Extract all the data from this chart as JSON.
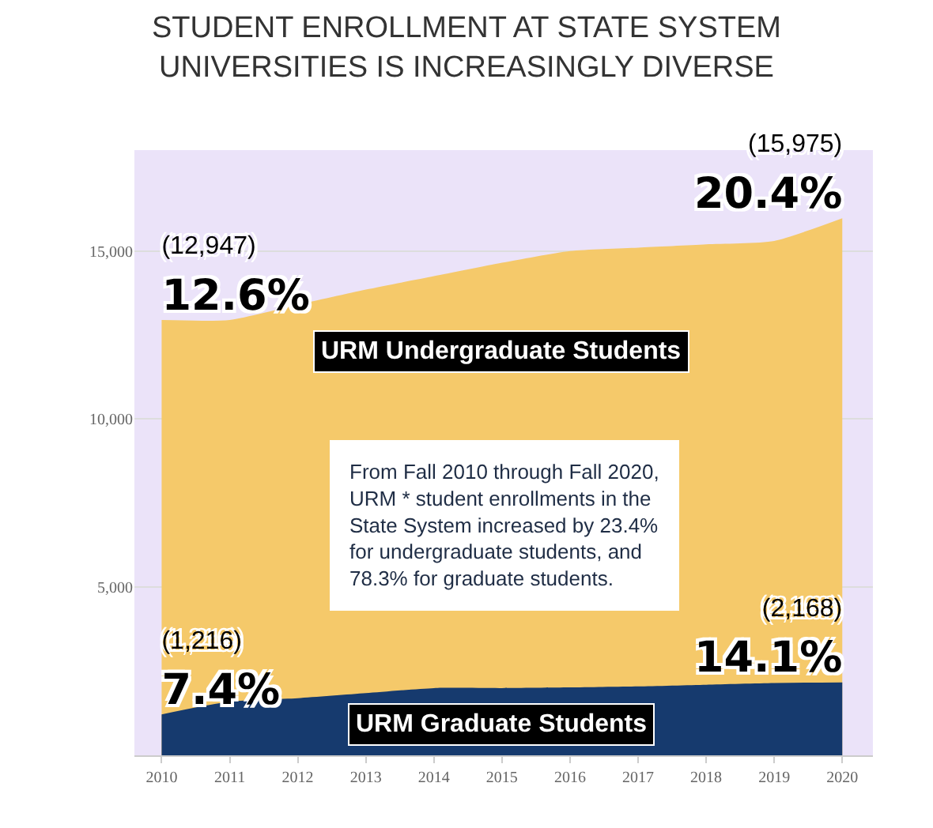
{
  "chart_data": {
    "type": "area",
    "title": "STUDENT ENROLLMENT AT STATE SYSTEM\nUNIVERSITIES IS INCREASINGLY DIVERSE",
    "x": [
      2010,
      2011,
      2012,
      2013,
      2014,
      2015,
      2016,
      2017,
      2018,
      2019,
      2020
    ],
    "series": [
      {
        "name": "URM Undergraduate Students",
        "color": "#f5c96a",
        "values": [
          12947,
          12950,
          13400,
          13850,
          14250,
          14650,
          15000,
          15100,
          15200,
          15300,
          15975
        ],
        "value_labels": [
          "(12,947)\n12.6%",
          null,
          null,
          null,
          null,
          null,
          null,
          null,
          null,
          null,
          "(15,975)\n20.4%"
        ]
      },
      {
        "name": "URM Graduate Students",
        "color": "#163a6e",
        "values": [
          1216,
          1600,
          1700,
          1850,
          2000,
          2000,
          2020,
          2050,
          2100,
          2150,
          2168
        ],
        "value_labels": [
          "(1,216)\n7.4%",
          null,
          null,
          null,
          null,
          null,
          null,
          null,
          null,
          null,
          "(2,168)\n14.1%"
        ]
      }
    ],
    "xlim": [
      2009.6,
      2020.45
    ],
    "xticks": [
      2010,
      2011,
      2012,
      2013,
      2014,
      2015,
      2016,
      2017,
      2018,
      2019,
      2020
    ],
    "ylim": [
      0,
      18000
    ],
    "yticks": [
      {
        "value": 5000,
        "label": "5,000"
      },
      {
        "value": 10000,
        "label": "10,000"
      },
      {
        "value": 15000,
        "label": "15,000"
      }
    ],
    "grid": "y",
    "legend": false,
    "annotations": [
      "From Fall 2010 through Fall 2020,\nURM * student enrollments in the\nState System increased by 23.4%\nfor undergraduate students, and\n78.3% for graduate students."
    ]
  }
}
